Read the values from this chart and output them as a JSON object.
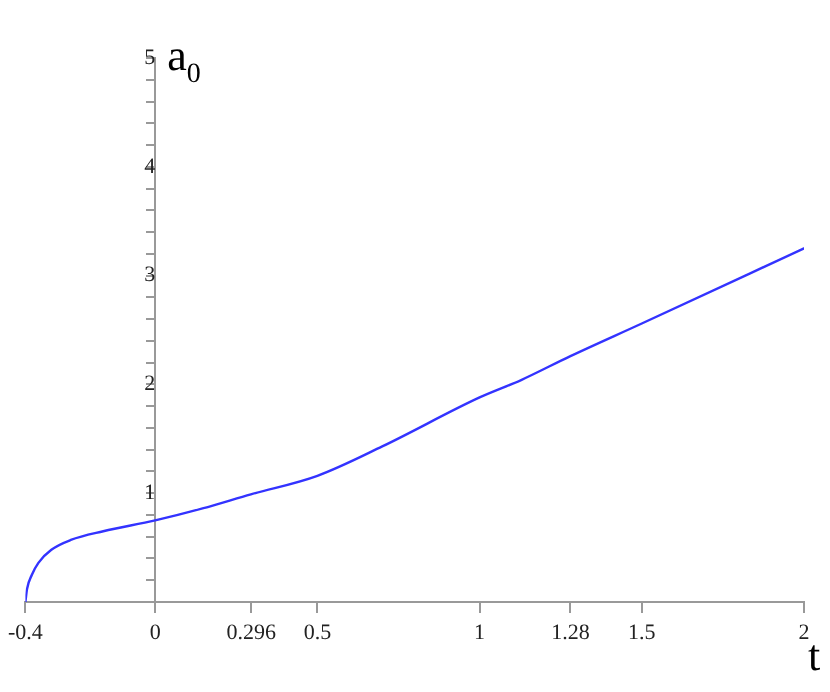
{
  "chart_data": {
    "type": "line",
    "xlabel": "t",
    "ylabel": "a$_{0}$",
    "x": [
      -0.4,
      -0.395,
      -0.38,
      -0.36,
      -0.32,
      -0.26,
      -0.16,
      0,
      0.146,
      0.295,
      0.5,
      0.7,
      1,
      1.128,
      1.28,
      1.5,
      2
    ],
    "series": [
      {
        "color": "#3333ff",
        "values": [
          0,
          0.12,
          0.25,
          0.36,
          0.48,
          0.57,
          0.65,
          0.75,
          0.86,
          0.99,
          1.16,
          1.43,
          1.88,
          2.04,
          2.26,
          2.56,
          3.25
        ]
      }
    ],
    "xlim": [
      -0.4,
      2
    ],
    "ylim": [
      0,
      5
    ],
    "xticks": [
      -0.4,
      0,
      0.296,
      0.5,
      1,
      1.28,
      1.5,
      2
    ],
    "yticks": [
      {
        "value": 0.2,
        "label": null
      },
      {
        "value": 0.4,
        "label": null
      },
      {
        "value": 0.6,
        "label": null
      },
      {
        "value": 0.8,
        "label": null
      },
      1,
      {
        "value": 1.2,
        "label": null
      },
      {
        "value": 1.4,
        "label": null
      },
      {
        "value": 1.6,
        "label": null
      },
      {
        "value": 1.8,
        "label": null
      },
      2,
      {
        "value": 2.2,
        "label": null
      },
      {
        "value": 2.4,
        "label": null
      },
      {
        "value": 2.6,
        "label": null
      },
      {
        "value": 2.8,
        "label": null
      },
      3,
      {
        "value": 3.2,
        "label": null
      },
      {
        "value": 3.4,
        "label": null
      },
      {
        "value": 3.6,
        "label": null
      },
      {
        "value": 3.8,
        "label": null
      },
      4,
      {
        "value": 4.2,
        "label": null
      },
      {
        "value": 4.4,
        "label": null
      },
      {
        "value": 4.6,
        "label": null
      },
      {
        "value": 4.8,
        "label": null
      },
      5
    ],
    "grid": false,
    "legend": false,
    "marker": "none",
    "line_style": "solid"
  }
}
